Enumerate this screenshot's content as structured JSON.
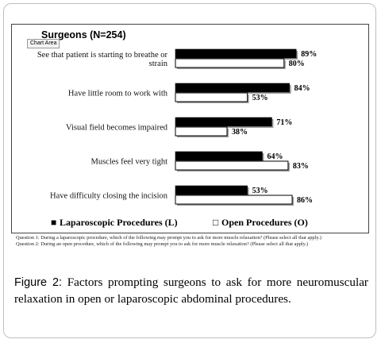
{
  "chart_data": {
    "type": "bar",
    "orientation": "horizontal",
    "title": "Surgeons (N=254)",
    "categories": [
      [
        "See that patient is starting to breathe or",
        "strain"
      ],
      [
        "Have little room to work with"
      ],
      [
        "Visual field becomes impaired"
      ],
      [
        "Muscles feel very tight"
      ],
      [
        "Have difficulty closing the incision"
      ]
    ],
    "series": [
      {
        "name": "Laparoscopic Procedures (L)",
        "color": "#000000",
        "values": [
          89,
          84,
          71,
          64,
          53
        ],
        "labels": [
          "89%",
          "84%",
          "71%",
          "64%",
          "53%"
        ]
      },
      {
        "name": "Open Procedures (O)",
        "color": "#ffffff",
        "values": [
          80,
          53,
          38,
          83,
          86
        ],
        "labels": [
          "80%",
          "53%",
          "38%",
          "83%",
          "86%"
        ]
      }
    ],
    "xlim": [
      0,
      100
    ],
    "unit": "%",
    "grid": false,
    "legend_position": "bottom"
  },
  "ui": {
    "chart_area_tag": "Chart Area",
    "legend_marker_filled": "■",
    "legend_marker_open": "□"
  },
  "notes": {
    "q1": "Question 1: During a laparoscopic procedure, which of the following may prompt you to ask for more muscle relaxation? (Please select all that apply.)",
    "q2": "Question 2: During an open procedure, which of the following may prompt you to ask for more muscle relaxation? (Please select all that apply.)"
  },
  "caption": {
    "label": "Figure 2:",
    "text": "Factors prompting surgeons to ask for more neuromuscular relaxation in open or laparoscopic abdominal procedures."
  }
}
